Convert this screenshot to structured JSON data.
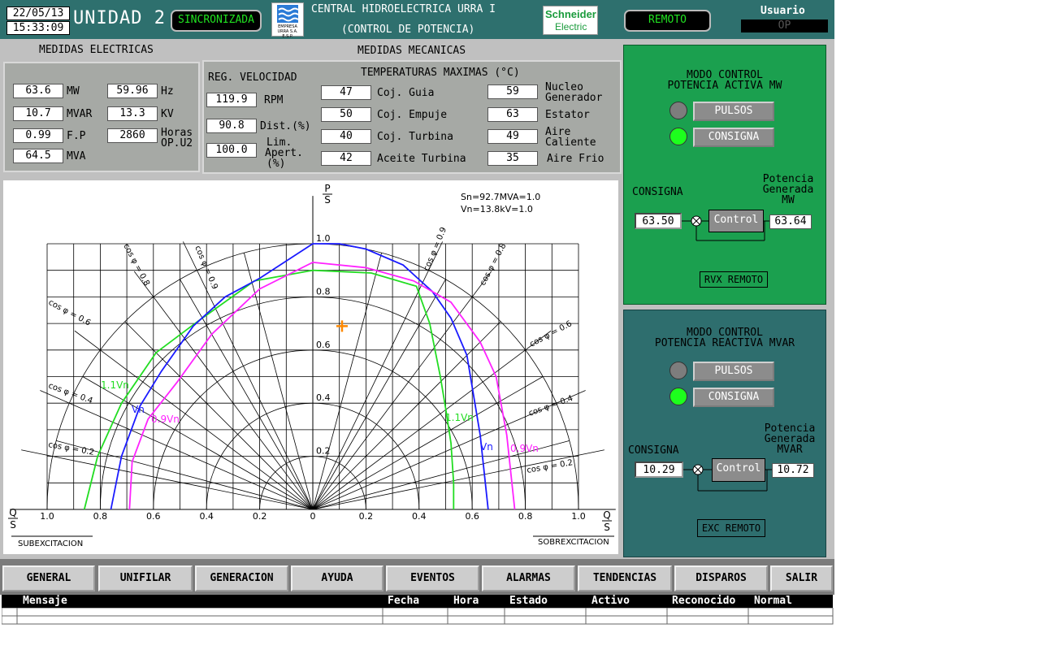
{
  "header": {
    "date": "22/05/13",
    "time": "15:33:09",
    "unit_title": "UNIDAD 2",
    "sync_status": "SINCRONIZADA",
    "plant_title": "CENTRAL HIDROELECTRICA URRA I",
    "plant_subtitle": "(CONTROL DE POTENCIA)",
    "logo_text": "EMPRESA URRA S.A. E.S.P.",
    "vendor_line1": "Schneider",
    "vendor_line2": "Electric",
    "mode_status": "REMOTO",
    "user_label": "Usuario",
    "user_value": "OP"
  },
  "electrical": {
    "title": "MEDIDAS ELECTRICAS",
    "mw": {
      "value": "63.6",
      "unit": "MW"
    },
    "hz": {
      "value": "59.96",
      "unit": "Hz"
    },
    "mvar": {
      "value": "10.7",
      "unit": "MVAR"
    },
    "kv": {
      "value": "13.3",
      "unit": "KV"
    },
    "fp": {
      "value": "0.99",
      "unit": "F.P"
    },
    "hours": {
      "value": "2860",
      "unit_line1": "Horas",
      "unit_line2": "OP.U2"
    },
    "mva": {
      "value": "64.5",
      "unit": "MVA"
    }
  },
  "mechanical": {
    "title": "MEDIDAS MECANICAS",
    "speed_title": "REG. VELOCIDAD",
    "rpm": {
      "value": "119.9",
      "unit": "RPM"
    },
    "dist": {
      "value": "90.8",
      "unit": "Dist.(%)"
    },
    "lim": {
      "value": "100.0",
      "unit_line1": "Lim.",
      "unit_line2": "Apert.",
      "unit_line3": "(%)"
    },
    "temp_title": "TEMPERATURAS MAXIMAS (°C)",
    "temps_left": [
      {
        "value": "47",
        "label": "Coj. Guia"
      },
      {
        "value": "50",
        "label": "Coj. Empuje"
      },
      {
        "value": "40",
        "label": "Coj. Turbina"
      },
      {
        "value": "42",
        "label": "Aceite Turbina"
      }
    ],
    "temps_right": [
      {
        "value": "59",
        "label_line1": "Nucleo",
        "label_line2": "Generador"
      },
      {
        "value": "63",
        "label_line1": "Estator",
        "label_line2": ""
      },
      {
        "value": "49",
        "label_line1": "Aire",
        "label_line2": "Caliente"
      },
      {
        "value": "35",
        "label_line1": "Aire Frio",
        "label_line2": ""
      }
    ]
  },
  "capability": {
    "p_num": "P",
    "p_den": "S",
    "q_num": "Q",
    "q_den": "S",
    "info_line1": "Sn=92.7MVA=1.0",
    "info_line2": "Vn=13.8kV=1.0",
    "x_ticks": [
      "1.0",
      "0.8",
      "0.6",
      "0.4",
      "0.2",
      "0",
      "0.2",
      "0.4",
      "0.6",
      "0.8",
      "1.0"
    ],
    "y_ticks": [
      "1.0",
      "0.8",
      "0.6",
      "0.4",
      "0.2"
    ],
    "cos_labels": [
      "cos φ = 0.8",
      "cos φ = 0.9",
      "cos φ = 0.6",
      "cos φ = 0.4",
      "cos φ = 0.2",
      "cos φ = 0.9",
      "cos φ = 0.8",
      "cos φ = 0.6",
      "cos φ = 0.4",
      "cos φ = 0.2"
    ],
    "curve_labels": [
      "1.1Vn",
      "Vn",
      "0.9Vn",
      "1.1Vn",
      "Vn",
      "0.9Vn"
    ],
    "sub_label": "SUBEXCITACION",
    "sobre_label": "SOBREXCITACION",
    "curve_colors": {
      "1.1Vn": "#22dd22",
      "Vn": "#1a1aff",
      "0.9Vn": "#ff22ff"
    },
    "operating_point": {
      "q": 0.11,
      "p": 0.69
    }
  },
  "active_control": {
    "title_line1": "MODO CONTROL",
    "title_line2": "POTENCIA ACTIVA MW",
    "pulsos_label": "PULSOS",
    "consigna_label": "CONSIGNA",
    "consigna_title": "CONSIGNA",
    "gen_line1": "Potencia",
    "gen_line2": "Generada",
    "gen_line3": "MW",
    "setpoint": "63.50",
    "control_label": "Control",
    "output": "63.64",
    "remote_label": "RVX REMOTO"
  },
  "reactive_control": {
    "title_line1": "MODO CONTROL",
    "title_line2": "POTENCIA REACTIVA MVAR",
    "pulsos_label": "PULSOS",
    "consigna_label": "CONSIGNA",
    "consigna_title": "CONSIGNA",
    "gen_line1": "Potencia",
    "gen_line2": "Generada",
    "gen_line3": "MVAR",
    "setpoint": "10.29",
    "control_label": "Control",
    "output": "10.72",
    "remote_label": "EXC REMOTO"
  },
  "nav": [
    "GENERAL",
    "UNIFILAR",
    "GENERACION",
    "AYUDA",
    "EVENTOS",
    "ALARMAS",
    "TENDENCIAS",
    "DISPAROS",
    "SALIR"
  ],
  "messages": {
    "columns": [
      "Mensaje",
      "Fecha",
      "Hora",
      "Estado",
      "Activo",
      "Reconocido",
      "Normal"
    ]
  }
}
